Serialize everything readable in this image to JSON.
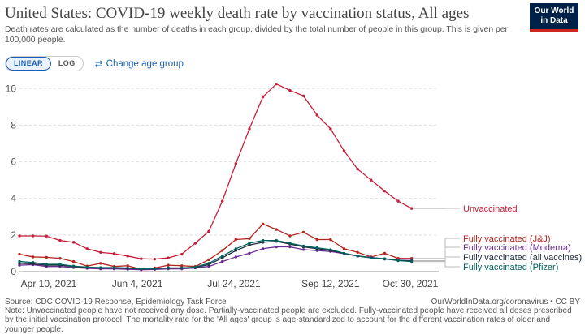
{
  "header": {
    "title": "United States: COVID-19 weekly death rate by vaccination status, All ages",
    "subtitle": "Death rates are calculated as the number of deaths in each group, divided by the total number of people in this group. This is given per 100,000 people.",
    "logo_line1": "Our World",
    "logo_line2": "in Data"
  },
  "controls": {
    "linear_label": "LINEAR",
    "log_label": "LOG",
    "scale_selected": "LINEAR",
    "change_age_label": "Change age group"
  },
  "footer": {
    "source": "Source: CDC COVID-19 Response, Epidemiology Task Force",
    "url": "OurWorldInData.org/coronavirus • CC BY",
    "note": "Note: Unvaccinated people have not received any dose. Partially-vaccinated people are excluded. Fully-vaccinated people have received all doses prescribed by the initial vaccination protocol. The mortality rate for the 'All ages' group is age-standardized to account for the different vaccination rates of older and younger people."
  },
  "chart_data": {
    "type": "line",
    "title": "United States: COVID-19 weekly death rate by vaccination status, All ages",
    "x_ticks": [
      "Apr 10, 2021",
      "Jun 4, 2021",
      "Jul 24, 2021",
      "Sep 12, 2021",
      "Oct 30, 2021"
    ],
    "y_ticks": [
      0,
      2,
      4,
      6,
      8,
      10
    ],
    "ylim": [
      0,
      10.5
    ],
    "grid": "horizontal dashed",
    "legend": "right (line labels)",
    "x": [
      "2021-04-04",
      "2021-04-11",
      "2021-04-18",
      "2021-04-25",
      "2021-05-02",
      "2021-05-09",
      "2021-05-16",
      "2021-05-23",
      "2021-05-30",
      "2021-06-06",
      "2021-06-13",
      "2021-06-20",
      "2021-06-27",
      "2021-07-04",
      "2021-07-11",
      "2021-07-18",
      "2021-07-25",
      "2021-08-01",
      "2021-08-08",
      "2021-08-15",
      "2021-08-22",
      "2021-08-29",
      "2021-09-05",
      "2021-09-12",
      "2021-09-19",
      "2021-09-26",
      "2021-10-03",
      "2021-10-10",
      "2021-10-17",
      "2021-10-24",
      "2021-10-31",
      "2021-11-07"
    ],
    "series": [
      {
        "name": "Unvaccinated",
        "color": "#c41e3a",
        "values": [
          1.95,
          1.95,
          1.94,
          1.7,
          1.6,
          1.25,
          1.05,
          0.98,
          0.85,
          0.7,
          0.68,
          0.75,
          0.95,
          1.55,
          2.2,
          3.85,
          5.9,
          7.8,
          9.55,
          10.25,
          9.9,
          9.6,
          8.55,
          7.8,
          6.6,
          5.6,
          5.0,
          4.4,
          3.85,
          3.45,
          null,
          null
        ]
      },
      {
        "name": "Fully vaccinated (J&J)",
        "color": "#b3261e",
        "values": [
          0.95,
          0.8,
          0.78,
          0.72,
          0.55,
          0.3,
          0.45,
          0.28,
          0.32,
          0.12,
          0.2,
          0.35,
          0.32,
          0.28,
          0.65,
          1.15,
          1.75,
          1.8,
          2.6,
          2.3,
          1.95,
          2.15,
          1.75,
          1.75,
          1.25,
          1.05,
          0.8,
          1.0,
          0.72,
          0.72,
          null,
          null
        ]
      },
      {
        "name": "Fully vaccinated (Moderna)",
        "color": "#6a2c91",
        "values": [
          0.35,
          0.38,
          0.28,
          0.28,
          0.22,
          0.18,
          0.15,
          0.15,
          0.13,
          0.1,
          0.12,
          0.15,
          0.15,
          0.2,
          0.28,
          0.55,
          0.8,
          1.0,
          1.25,
          1.35,
          1.35,
          1.2,
          1.15,
          1.1,
          0.98,
          0.85,
          0.78,
          0.68,
          0.62,
          0.6,
          null,
          null
        ]
      },
      {
        "name": "Fully vaccinated (all vaccines)",
        "color": "#1d2b3a",
        "values": [
          0.45,
          0.42,
          0.35,
          0.35,
          0.28,
          0.22,
          0.2,
          0.2,
          0.18,
          0.15,
          0.15,
          0.2,
          0.2,
          0.22,
          0.38,
          0.75,
          1.15,
          1.45,
          1.6,
          1.65,
          1.5,
          1.35,
          1.25,
          1.15,
          1.0,
          0.85,
          0.75,
          0.7,
          0.62,
          0.58,
          null,
          null
        ]
      },
      {
        "name": "Fully vaccinated (Pfizer)",
        "color": "#00625e",
        "values": [
          0.55,
          0.5,
          0.4,
          0.4,
          0.3,
          0.25,
          0.22,
          0.22,
          0.2,
          0.15,
          0.16,
          0.2,
          0.2,
          0.25,
          0.45,
          0.85,
          1.25,
          1.55,
          1.7,
          1.7,
          1.55,
          1.4,
          1.3,
          1.2,
          1.0,
          0.85,
          0.75,
          0.7,
          0.6,
          0.55,
          null,
          null
        ]
      }
    ]
  }
}
